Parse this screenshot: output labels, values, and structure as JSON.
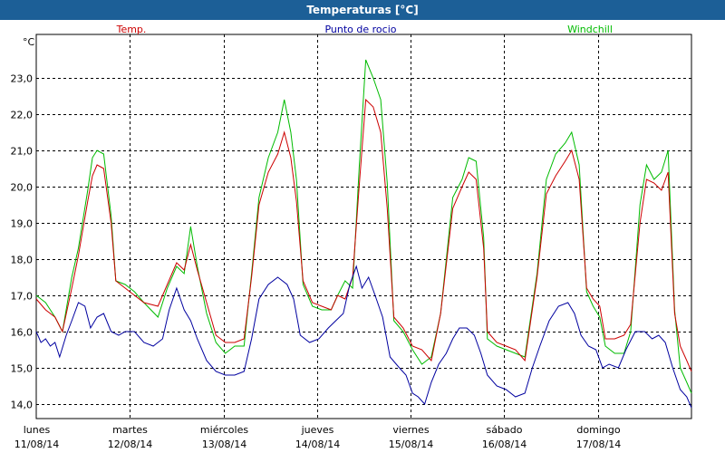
{
  "window": {
    "title": "Temperaturas [°C]"
  },
  "chart_data": {
    "type": "line",
    "y_unit": "°C",
    "ylim": [
      13.6,
      24.2
    ],
    "yticks": [
      "23,0",
      "22,0",
      "21,0",
      "20,0",
      "19,0",
      "18,0",
      "17,0",
      "16,0",
      "15,0",
      "14,0"
    ],
    "ytick_values": [
      23,
      22,
      21,
      20,
      19,
      18,
      17,
      16,
      15,
      14
    ],
    "x_days": [
      {
        "day": "lunes",
        "date": "11/08/14"
      },
      {
        "day": "martes",
        "date": "12/08/14"
      },
      {
        "day": "miércoles",
        "date": "13/08/14"
      },
      {
        "day": "jueves",
        "date": "14/08/14"
      },
      {
        "day": "viernes",
        "date": "15/08/14"
      },
      {
        "day": "sábado",
        "date": "16/08/14"
      },
      {
        "day": "domingo",
        "date": "17/08/14"
      }
    ],
    "x_range_days": [
      0,
      7
    ],
    "grid": true,
    "legend_position": "top",
    "series": [
      {
        "name": "Temp.",
        "color": "#cc0000",
        "points": [
          [
            0,
            16.9
          ],
          [
            0.1,
            16.6
          ],
          [
            0.2,
            16.4
          ],
          [
            0.28,
            16.0
          ],
          [
            0.38,
            17.2
          ],
          [
            0.45,
            18.1
          ],
          [
            0.55,
            19.6
          ],
          [
            0.6,
            20.3
          ],
          [
            0.65,
            20.6
          ],
          [
            0.72,
            20.5
          ],
          [
            0.8,
            19.0
          ],
          [
            0.85,
            17.4
          ],
          [
            0.95,
            17.2
          ],
          [
            1.05,
            17.0
          ],
          [
            1.15,
            16.8
          ],
          [
            1.3,
            16.7
          ],
          [
            1.4,
            17.3
          ],
          [
            1.5,
            17.9
          ],
          [
            1.58,
            17.7
          ],
          [
            1.65,
            18.4
          ],
          [
            1.72,
            17.7
          ],
          [
            1.82,
            16.8
          ],
          [
            1.92,
            15.9
          ],
          [
            2.02,
            15.7
          ],
          [
            2.12,
            15.7
          ],
          [
            2.22,
            15.8
          ],
          [
            2.3,
            17.5
          ],
          [
            2.38,
            19.5
          ],
          [
            2.48,
            20.4
          ],
          [
            2.58,
            20.9
          ],
          [
            2.65,
            21.5
          ],
          [
            2.72,
            20.8
          ],
          [
            2.78,
            19.6
          ],
          [
            2.85,
            17.4
          ],
          [
            2.95,
            16.8
          ],
          [
            3.05,
            16.7
          ],
          [
            3.15,
            16.6
          ],
          [
            3.22,
            17.0
          ],
          [
            3.3,
            16.9
          ],
          [
            3.38,
            17.5
          ],
          [
            3.45,
            20.0
          ],
          [
            3.52,
            22.4
          ],
          [
            3.6,
            22.2
          ],
          [
            3.68,
            21.5
          ],
          [
            3.75,
            19.4
          ],
          [
            3.82,
            16.4
          ],
          [
            3.92,
            16.1
          ],
          [
            4.02,
            15.6
          ],
          [
            4.12,
            15.5
          ],
          [
            4.22,
            15.2
          ],
          [
            4.32,
            16.5
          ],
          [
            4.45,
            19.4
          ],
          [
            4.55,
            20.0
          ],
          [
            4.62,
            20.4
          ],
          [
            4.7,
            20.2
          ],
          [
            4.78,
            18.3
          ],
          [
            4.82,
            16.0
          ],
          [
            4.92,
            15.7
          ],
          [
            5.02,
            15.6
          ],
          [
            5.12,
            15.5
          ],
          [
            5.22,
            15.2
          ],
          [
            5.35,
            17.5
          ],
          [
            5.45,
            19.8
          ],
          [
            5.55,
            20.3
          ],
          [
            5.65,
            20.7
          ],
          [
            5.72,
            21.0
          ],
          [
            5.8,
            20.2
          ],
          [
            5.88,
            17.2
          ],
          [
            5.95,
            16.9
          ],
          [
            6.02,
            16.7
          ],
          [
            6.08,
            15.8
          ],
          [
            6.18,
            15.8
          ],
          [
            6.28,
            15.9
          ],
          [
            6.35,
            16.2
          ],
          [
            6.45,
            19.0
          ],
          [
            6.52,
            20.2
          ],
          [
            6.6,
            20.1
          ],
          [
            6.68,
            19.9
          ],
          [
            6.75,
            20.4
          ],
          [
            6.82,
            16.5
          ],
          [
            6.88,
            15.6
          ],
          [
            6.95,
            15.2
          ],
          [
            7.0,
            14.9
          ]
        ]
      },
      {
        "name": "Punto de rocio",
        "color": "#00009f",
        "points": [
          [
            0,
            16.0
          ],
          [
            0.05,
            15.7
          ],
          [
            0.1,
            15.8
          ],
          [
            0.15,
            15.6
          ],
          [
            0.2,
            15.7
          ],
          [
            0.25,
            15.3
          ],
          [
            0.32,
            15.9
          ],
          [
            0.38,
            16.3
          ],
          [
            0.45,
            16.8
          ],
          [
            0.52,
            16.7
          ],
          [
            0.58,
            16.1
          ],
          [
            0.65,
            16.4
          ],
          [
            0.72,
            16.5
          ],
          [
            0.8,
            16.0
          ],
          [
            0.88,
            15.9
          ],
          [
            0.95,
            16.0
          ],
          [
            1.05,
            16.0
          ],
          [
            1.15,
            15.7
          ],
          [
            1.25,
            15.6
          ],
          [
            1.35,
            15.8
          ],
          [
            1.42,
            16.6
          ],
          [
            1.5,
            17.2
          ],
          [
            1.58,
            16.6
          ],
          [
            1.65,
            16.3
          ],
          [
            1.72,
            15.8
          ],
          [
            1.82,
            15.2
          ],
          [
            1.92,
            14.9
          ],
          [
            2.02,
            14.8
          ],
          [
            2.12,
            14.8
          ],
          [
            2.22,
            14.9
          ],
          [
            2.3,
            15.8
          ],
          [
            2.38,
            16.9
          ],
          [
            2.48,
            17.3
          ],
          [
            2.58,
            17.5
          ],
          [
            2.68,
            17.3
          ],
          [
            2.75,
            16.9
          ],
          [
            2.82,
            15.9
          ],
          [
            2.92,
            15.7
          ],
          [
            3.02,
            15.8
          ],
          [
            3.12,
            16.1
          ],
          [
            3.2,
            16.3
          ],
          [
            3.28,
            16.5
          ],
          [
            3.35,
            17.3
          ],
          [
            3.42,
            17.8
          ],
          [
            3.48,
            17.2
          ],
          [
            3.55,
            17.5
          ],
          [
            3.62,
            17.0
          ],
          [
            3.7,
            16.4
          ],
          [
            3.78,
            15.3
          ],
          [
            3.88,
            15.0
          ],
          [
            3.95,
            14.8
          ],
          [
            4.02,
            14.3
          ],
          [
            4.08,
            14.2
          ],
          [
            4.15,
            14.0
          ],
          [
            4.22,
            14.6
          ],
          [
            4.3,
            15.1
          ],
          [
            4.38,
            15.4
          ],
          [
            4.45,
            15.8
          ],
          [
            4.52,
            16.1
          ],
          [
            4.6,
            16.1
          ],
          [
            4.68,
            15.9
          ],
          [
            4.75,
            15.4
          ],
          [
            4.82,
            14.8
          ],
          [
            4.92,
            14.5
          ],
          [
            5.02,
            14.4
          ],
          [
            5.12,
            14.2
          ],
          [
            5.22,
            14.3
          ],
          [
            5.3,
            15.0
          ],
          [
            5.38,
            15.6
          ],
          [
            5.48,
            16.3
          ],
          [
            5.58,
            16.7
          ],
          [
            5.68,
            16.8
          ],
          [
            5.75,
            16.5
          ],
          [
            5.82,
            15.9
          ],
          [
            5.9,
            15.6
          ],
          [
            5.98,
            15.5
          ],
          [
            6.05,
            15.0
          ],
          [
            6.12,
            15.1
          ],
          [
            6.22,
            15.0
          ],
          [
            6.3,
            15.5
          ],
          [
            6.4,
            16.0
          ],
          [
            6.5,
            16.0
          ],
          [
            6.58,
            15.8
          ],
          [
            6.65,
            15.9
          ],
          [
            6.72,
            15.7
          ],
          [
            6.8,
            15.0
          ],
          [
            6.88,
            14.4
          ],
          [
            6.95,
            14.2
          ],
          [
            7.0,
            13.9
          ]
        ]
      },
      {
        "name": "Windchill",
        "color": "#00bb00",
        "points": [
          [
            0,
            17.0
          ],
          [
            0.1,
            16.8
          ],
          [
            0.2,
            16.4
          ],
          [
            0.28,
            16.0
          ],
          [
            0.38,
            17.5
          ],
          [
            0.45,
            18.3
          ],
          [
            0.55,
            19.9
          ],
          [
            0.6,
            20.8
          ],
          [
            0.65,
            21.0
          ],
          [
            0.72,
            20.9
          ],
          [
            0.8,
            19.2
          ],
          [
            0.85,
            17.4
          ],
          [
            0.95,
            17.3
          ],
          [
            1.05,
            17.1
          ],
          [
            1.15,
            16.8
          ],
          [
            1.3,
            16.4
          ],
          [
            1.4,
            17.2
          ],
          [
            1.5,
            17.8
          ],
          [
            1.58,
            17.6
          ],
          [
            1.65,
            18.9
          ],
          [
            1.72,
            17.8
          ],
          [
            1.82,
            16.5
          ],
          [
            1.92,
            15.7
          ],
          [
            2.02,
            15.4
          ],
          [
            2.12,
            15.6
          ],
          [
            2.22,
            15.6
          ],
          [
            2.3,
            17.6
          ],
          [
            2.38,
            19.7
          ],
          [
            2.48,
            20.8
          ],
          [
            2.58,
            21.5
          ],
          [
            2.65,
            22.4
          ],
          [
            2.72,
            21.5
          ],
          [
            2.78,
            20.2
          ],
          [
            2.85,
            17.3
          ],
          [
            2.95,
            16.7
          ],
          [
            3.05,
            16.6
          ],
          [
            3.15,
            16.6
          ],
          [
            3.22,
            17.0
          ],
          [
            3.3,
            17.4
          ],
          [
            3.38,
            17.2
          ],
          [
            3.45,
            20.5
          ],
          [
            3.52,
            23.5
          ],
          [
            3.6,
            23.0
          ],
          [
            3.68,
            22.4
          ],
          [
            3.75,
            20.1
          ],
          [
            3.82,
            16.3
          ],
          [
            3.92,
            16.0
          ],
          [
            4.02,
            15.5
          ],
          [
            4.12,
            15.1
          ],
          [
            4.22,
            15.3
          ],
          [
            4.32,
            16.5
          ],
          [
            4.45,
            19.7
          ],
          [
            4.55,
            20.2
          ],
          [
            4.62,
            20.8
          ],
          [
            4.7,
            20.7
          ],
          [
            4.78,
            18.6
          ],
          [
            4.82,
            15.8
          ],
          [
            4.92,
            15.6
          ],
          [
            5.02,
            15.5
          ],
          [
            5.12,
            15.4
          ],
          [
            5.22,
            15.3
          ],
          [
            5.35,
            17.6
          ],
          [
            5.45,
            20.2
          ],
          [
            5.55,
            20.9
          ],
          [
            5.65,
            21.2
          ],
          [
            5.72,
            21.5
          ],
          [
            5.8,
            20.6
          ],
          [
            5.88,
            17.1
          ],
          [
            5.95,
            16.7
          ],
          [
            6.02,
            16.4
          ],
          [
            6.08,
            15.6
          ],
          [
            6.18,
            15.4
          ],
          [
            6.28,
            15.4
          ],
          [
            6.35,
            16.0
          ],
          [
            6.45,
            19.5
          ],
          [
            6.52,
            20.6
          ],
          [
            6.6,
            20.2
          ],
          [
            6.68,
            20.4
          ],
          [
            6.75,
            21.0
          ],
          [
            6.82,
            16.6
          ],
          [
            6.88,
            15.0
          ],
          [
            6.95,
            14.6
          ],
          [
            7.0,
            14.3
          ]
        ]
      }
    ]
  }
}
